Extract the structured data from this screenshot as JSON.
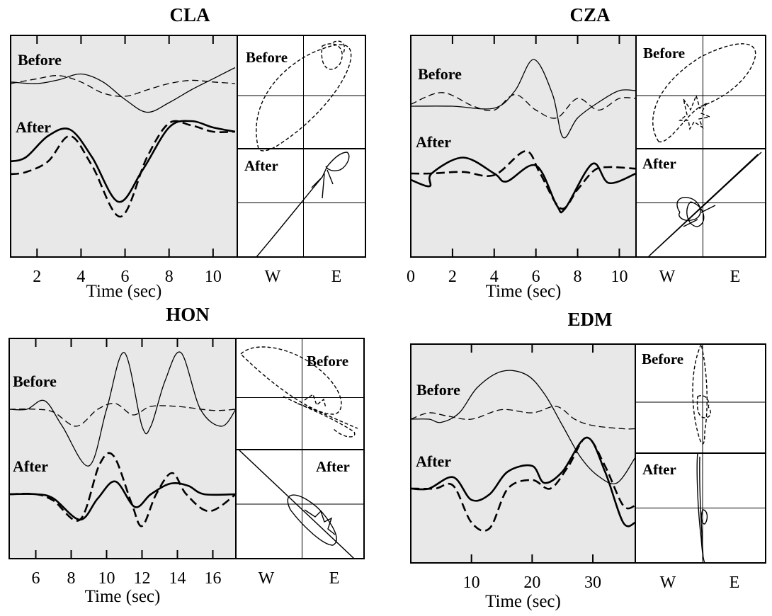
{
  "background": "#e8e8e8",
  "chart_data": [
    {
      "type": "line",
      "title": "CLA",
      "xlabel": "Time (sec)",
      "ylabel": "",
      "xlim": [
        0.8,
        11.1
      ],
      "xticks": [
        2,
        4,
        6,
        8,
        10
      ],
      "traces": {
        "before_label": "Before",
        "after_label": "After",
        "before_solid": [
          [
            0.8,
            0.05
          ],
          [
            2,
            0.0
          ],
          [
            3,
            0.12
          ],
          [
            4,
            0.3
          ],
          [
            5,
            0.05
          ],
          [
            6,
            -0.5
          ],
          [
            7,
            -0.9
          ],
          [
            8,
            -0.6
          ],
          [
            9,
            -0.2
          ],
          [
            10,
            0.15
          ],
          [
            11,
            0.5
          ]
        ],
        "before_dashed": [
          [
            0.8,
            0.0
          ],
          [
            2,
            0.15
          ],
          [
            3,
            0.25
          ],
          [
            4,
            0.05
          ],
          [
            5,
            -0.3
          ],
          [
            6,
            -0.4
          ],
          [
            7,
            -0.2
          ],
          [
            8,
            0.0
          ],
          [
            9,
            0.1
          ],
          [
            10,
            0.05
          ],
          [
            11,
            0.0
          ]
        ],
        "after_solid": [
          [
            0.8,
            0.0
          ],
          [
            1.5,
            0.1
          ],
          [
            2.5,
            0.6
          ],
          [
            3.5,
            0.75
          ],
          [
            4.5,
            0.1
          ],
          [
            5.7,
            -0.95
          ],
          [
            6.8,
            -0.2
          ],
          [
            8,
            0.8
          ],
          [
            9,
            0.95
          ],
          [
            10,
            0.8
          ],
          [
            11,
            0.7
          ]
        ],
        "after_dashed": [
          [
            0.8,
            -0.3
          ],
          [
            1.5,
            -0.25
          ],
          [
            2.5,
            0.0
          ],
          [
            3.5,
            0.6
          ],
          [
            4.5,
            -0.1
          ],
          [
            5.8,
            -1.3
          ],
          [
            7,
            0.1
          ],
          [
            8,
            0.9
          ],
          [
            9,
            0.85
          ],
          [
            10,
            0.7
          ],
          [
            11,
            0.7
          ]
        ]
      },
      "hodogram": {
        "xlabel_left": "W",
        "xlabel_right": "E",
        "before_label": "Before",
        "after_label": "After"
      }
    },
    {
      "type": "line",
      "title": "CZA",
      "xlabel": "Time (sec)",
      "ylabel": "",
      "xlim": [
        0,
        10.8
      ],
      "xticks": [
        0,
        2,
        4,
        6,
        8,
        10
      ],
      "traces": {
        "before_label": "Before",
        "after_label": "After",
        "before_solid": [
          [
            0,
            0.0
          ],
          [
            2,
            0.0
          ],
          [
            4,
            -0.05
          ],
          [
            5,
            0.4
          ],
          [
            5.9,
            1.2
          ],
          [
            6.8,
            0.3
          ],
          [
            7.3,
            -0.8
          ],
          [
            8,
            -0.3
          ],
          [
            9,
            0.1
          ],
          [
            10,
            0.4
          ],
          [
            10.8,
            0.4
          ]
        ],
        "before_dashed": [
          [
            0,
            0.05
          ],
          [
            1.5,
            0.35
          ],
          [
            3,
            0.0
          ],
          [
            4,
            -0.1
          ],
          [
            5,
            0.3
          ],
          [
            6,
            -0.1
          ],
          [
            7,
            -0.3
          ],
          [
            8,
            0.2
          ],
          [
            9,
            -0.1
          ],
          [
            10,
            0.2
          ],
          [
            10.8,
            0.2
          ]
        ],
        "after_solid": [
          [
            0,
            -0.2
          ],
          [
            0.9,
            -0.4
          ],
          [
            1,
            0.0
          ],
          [
            2.5,
            0.5
          ],
          [
            4,
            0.0
          ],
          [
            4.6,
            -0.25
          ],
          [
            6,
            0.25
          ],
          [
            7,
            -1.0
          ],
          [
            7.4,
            -1.1
          ],
          [
            8.7,
            0.3
          ],
          [
            9.5,
            -0.3
          ],
          [
            10.8,
            0.0
          ]
        ],
        "after_dashed": [
          [
            0,
            0.0
          ],
          [
            1,
            0.0
          ],
          [
            2.5,
            0.05
          ],
          [
            4,
            -0.05
          ],
          [
            5.5,
            0.7
          ],
          [
            6.2,
            0.0
          ],
          [
            7.2,
            -1.1
          ],
          [
            8,
            -0.5
          ],
          [
            8.8,
            0.1
          ],
          [
            9.5,
            0.2
          ],
          [
            10.8,
            0.15
          ]
        ]
      },
      "hodogram": {
        "xlabel_left": "W",
        "xlabel_right": "E",
        "before_label": "Before",
        "after_label": "After"
      }
    },
    {
      "type": "line",
      "title": "HON",
      "xlabel": "Time (sec)",
      "ylabel": "",
      "xlim": [
        4.5,
        17.3
      ],
      "xticks": [
        6,
        8,
        10,
        12,
        14,
        16
      ],
      "traces": {
        "before_label": "Before",
        "after_label": "After",
        "before_solid": [
          [
            4.5,
            0.0
          ],
          [
            5.5,
            0.0
          ],
          [
            6.5,
            0.15
          ],
          [
            7.5,
            -0.3
          ],
          [
            9,
            -1.0
          ],
          [
            10,
            0.0
          ],
          [
            11,
            1.0
          ],
          [
            12,
            -0.3
          ],
          [
            12.5,
            -0.3
          ],
          [
            13.3,
            0.5
          ],
          [
            14.2,
            1.0
          ],
          [
            15.3,
            0.0
          ],
          [
            16.5,
            -0.3
          ],
          [
            17.3,
            0.0
          ]
        ],
        "before_dashed": [
          [
            4.5,
            0.0
          ],
          [
            6,
            0.0
          ],
          [
            7,
            -0.05
          ],
          [
            8.3,
            -0.3
          ],
          [
            9.5,
            0.0
          ],
          [
            10.5,
            0.1
          ],
          [
            11.5,
            -0.1
          ],
          [
            12.5,
            0.05
          ],
          [
            14,
            0.05
          ],
          [
            16,
            -0.02
          ],
          [
            17.3,
            0.0
          ]
        ],
        "after_solid": [
          [
            4.5,
            0.0
          ],
          [
            6,
            0.0
          ],
          [
            7,
            -0.1
          ],
          [
            8.5,
            -0.6
          ],
          [
            9.5,
            -0.1
          ],
          [
            10.5,
            0.3
          ],
          [
            11.6,
            -0.3
          ],
          [
            12.5,
            0.0
          ],
          [
            13.6,
            0.25
          ],
          [
            14.6,
            0.2
          ],
          [
            15.5,
            0.0
          ],
          [
            17.3,
            0.0
          ]
        ],
        "after_dashed": [
          [
            4.5,
            0.0
          ],
          [
            6,
            0.0
          ],
          [
            7,
            -0.15
          ],
          [
            8.5,
            -0.6
          ],
          [
            9.6,
            0.7
          ],
          [
            10.4,
            0.9
          ],
          [
            11.4,
            -0.2
          ],
          [
            12,
            -0.75
          ],
          [
            12.8,
            0.0
          ],
          [
            13.7,
            0.5
          ],
          [
            14.5,
            0.0
          ],
          [
            15.8,
            -0.4
          ],
          [
            17.3,
            0.0
          ]
        ]
      },
      "hodogram": {
        "xlabel_left": "W",
        "xlabel_right": "E",
        "before_label": "Before",
        "after_label": "After"
      }
    },
    {
      "type": "line",
      "title": "EDM",
      "xlabel": "Time (sec)",
      "ylabel": "",
      "xlim": [
        0,
        37
      ],
      "xticks": [
        10,
        20,
        30
      ],
      "traces": {
        "before_label": "Before",
        "after_label": "After",
        "before_solid": [
          [
            0,
            0.0
          ],
          [
            3,
            0.0
          ],
          [
            5,
            -0.05
          ],
          [
            8,
            0.1
          ],
          [
            11,
            0.5
          ],
          [
            15,
            0.75
          ],
          [
            19,
            0.7
          ],
          [
            22,
            0.4
          ],
          [
            25,
            -0.1
          ],
          [
            28,
            -0.6
          ],
          [
            31,
            -0.9
          ],
          [
            34,
            -1.0
          ],
          [
            37,
            -0.6
          ]
        ],
        "before_dashed": [
          [
            0,
            0.0
          ],
          [
            3,
            0.1
          ],
          [
            6,
            0.05
          ],
          [
            10,
            0.0
          ],
          [
            15,
            0.15
          ],
          [
            20,
            0.1
          ],
          [
            24,
            0.2
          ],
          [
            27,
            0.0
          ],
          [
            30,
            -0.1
          ],
          [
            35,
            -0.15
          ],
          [
            37,
            -0.15
          ]
        ],
        "after_solid": [
          [
            0,
            0.0
          ],
          [
            3,
            0.0
          ],
          [
            7,
            0.2
          ],
          [
            10,
            -0.2
          ],
          [
            13,
            -0.1
          ],
          [
            16,
            0.3
          ],
          [
            20,
            0.4
          ],
          [
            22,
            0.1
          ],
          [
            25,
            0.3
          ],
          [
            29,
            0.9
          ],
          [
            32,
            0.3
          ],
          [
            35,
            -0.6
          ],
          [
            37,
            -0.6
          ]
        ],
        "after_dashed": [
          [
            0,
            0.0
          ],
          [
            4,
            0.0
          ],
          [
            7,
            0.05
          ],
          [
            10,
            -0.6
          ],
          [
            13,
            -0.7
          ],
          [
            16,
            0.0
          ],
          [
            20,
            0.15
          ],
          [
            23,
            0.0
          ],
          [
            26,
            0.4
          ],
          [
            29,
            0.9
          ],
          [
            32,
            0.4
          ],
          [
            35,
            -0.3
          ],
          [
            37,
            -0.3
          ]
        ]
      },
      "hodogram": {
        "xlabel_left": "W",
        "xlabel_right": "E",
        "before_label": "Before",
        "after_label": "After"
      }
    }
  ]
}
